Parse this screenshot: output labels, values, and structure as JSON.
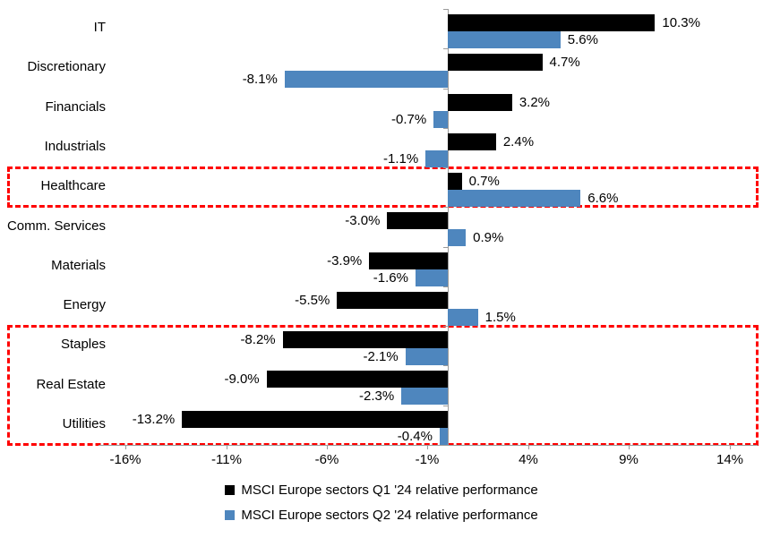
{
  "chart_data": {
    "type": "bar",
    "orientation": "horizontal",
    "title": "",
    "xlabel": "",
    "ylabel": "",
    "categories": [
      "IT",
      "Discretionary",
      "Financials",
      "Industrials",
      "Healthcare",
      "Comm. Services",
      "Materials",
      "Energy",
      "Staples",
      "Real Estate",
      "Utilities"
    ],
    "series": [
      {
        "name": "MSCI Europe sectors Q1 '24 relative performance",
        "color": "#000000",
        "values": [
          10.3,
          4.7,
          3.2,
          2.4,
          0.7,
          -3.0,
          -3.9,
          -5.5,
          -8.2,
          -9.0,
          -13.2
        ],
        "labels": [
          "10.3%",
          "4.7%",
          "3.2%",
          "2.4%",
          "0.7%",
          "-3.0%",
          "-3.9%",
          "-5.5%",
          "-8.2%",
          "-9.0%",
          "-13.2%"
        ]
      },
      {
        "name": "MSCI Europe sectors Q2 '24 relative performance",
        "color": "#4E86BE",
        "values": [
          5.6,
          -8.1,
          -0.7,
          -1.1,
          6.6,
          0.9,
          -1.6,
          1.5,
          -2.1,
          -2.3,
          -0.4
        ],
        "labels": [
          "5.6%",
          "-8.1%",
          "-0.7%",
          "-1.1%",
          "6.6%",
          "0.9%",
          "-1.6%",
          "1.5%",
          "-2.1%",
          "-2.3%",
          "-0.4%"
        ]
      }
    ],
    "x_axis": {
      "tick_labels": [
        "-16%",
        "-11%",
        "-6%",
        "-1%",
        "4%",
        "9%",
        "14%"
      ],
      "tick_values": [
        -16,
        -11,
        -6,
        -1,
        4,
        9,
        14
      ],
      "min": -17.35,
      "max": 15.4,
      "axis_color": "#9b9b9b"
    },
    "grid": "off",
    "legend": {
      "position": "bottom",
      "entries": [
        {
          "label": "MSCI Europe sectors Q1 '24 relative performance",
          "color": "#000000"
        },
        {
          "label": "MSCI Europe sectors Q2 '24 relative performance",
          "color": "#4E86BE"
        }
      ]
    },
    "highlight_boxes": [
      {
        "first_row": 4,
        "last_row": 4,
        "color": "#ff0000"
      },
      {
        "first_row": 8,
        "last_row": 10,
        "color": "#ff0000"
      }
    ]
  }
}
